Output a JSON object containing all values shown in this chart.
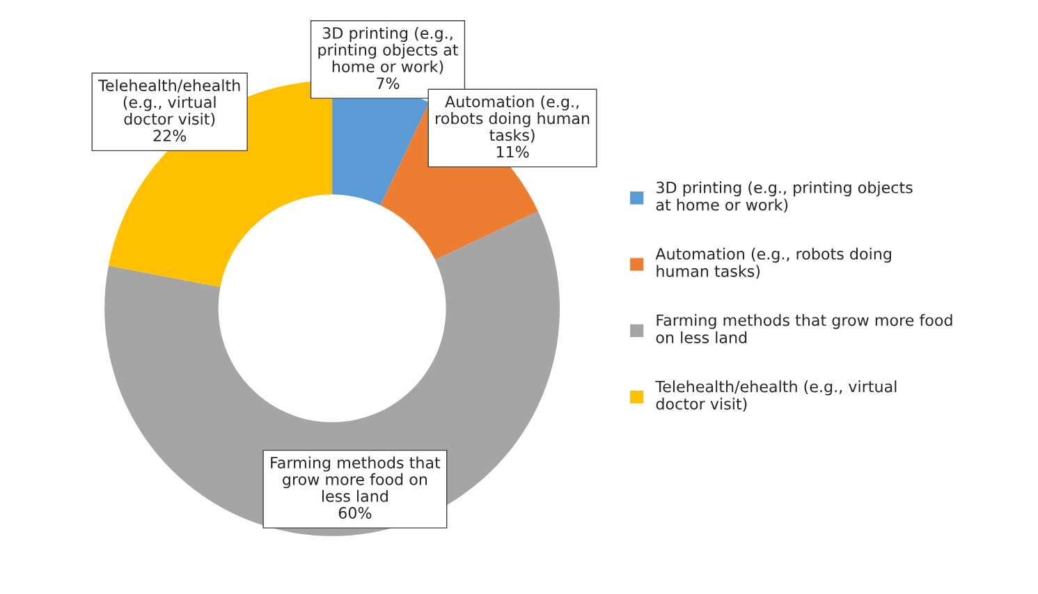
{
  "chart_data": {
    "type": "donut",
    "categories": [
      "3D printing (e.g., printing objects at home or work)",
      "Automation (e.g., robots doing human tasks)",
      "Farming methods that grow more food on less land",
      "Telehealth/ehealth (e.g., virtual doctor visit)"
    ],
    "values": [
      7,
      11,
      60,
      22
    ],
    "value_labels": [
      "7%",
      "11%",
      "60%",
      "22%"
    ],
    "colors": [
      "#5b9bd5",
      "#ed7d31",
      "#a5a5a5",
      "#ffc000"
    ],
    "legend": "right"
  }
}
